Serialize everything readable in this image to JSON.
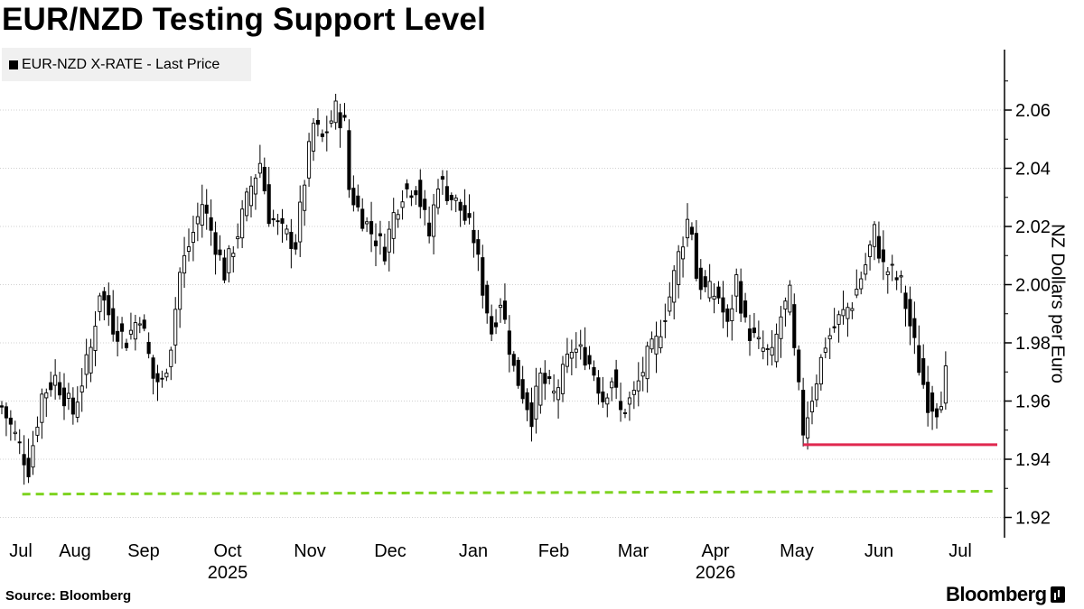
{
  "title": "EUR/NZD Testing Support Level",
  "legend": {
    "label": "EUR-NZD X-RATE - Last Price"
  },
  "source": "Source: Bloomberg",
  "brand": "Bloomberg",
  "chart_data": {
    "type": "candlestick",
    "ylabel": "NZ Dollars per Euro",
    "ylim": [
      1.915,
      2.08
    ],
    "yticks": [
      1.92,
      1.94,
      1.96,
      1.98,
      2.0,
      2.02,
      2.04,
      2.06
    ],
    "x_months": [
      "Jul",
      "Aug",
      "Sep",
      "Oct",
      "Nov",
      "Dec",
      "Jan",
      "Feb",
      "Mar",
      "Apr",
      "May",
      "Jun",
      "Jul"
    ],
    "x_years": [
      {
        "label": "2025",
        "under": "Oct"
      },
      {
        "label": "2026",
        "under": "Apr"
      }
    ],
    "grid": "horizontal dotted",
    "colors": {
      "candle": "#000000",
      "support_line": "#e0284f",
      "long_term_line": "#7ed321",
      "grid": "#d0d0d0"
    },
    "close_path": [
      [
        0,
        1.958
      ],
      [
        3,
        1.948
      ],
      [
        6,
        1.937
      ],
      [
        9,
        1.962
      ],
      [
        12,
        1.968
      ],
      [
        16,
        1.956
      ],
      [
        20,
        1.978
      ],
      [
        22,
        1.998
      ],
      [
        25,
        1.986
      ],
      [
        28,
        1.981
      ],
      [
        31,
        1.99
      ],
      [
        34,
        1.968
      ],
      [
        36,
        1.966
      ],
      [
        38,
        1.98
      ],
      [
        40,
        2.004
      ],
      [
        43,
        2.018
      ],
      [
        45,
        2.028
      ],
      [
        48,
        2.014
      ],
      [
        50,
        2.004
      ],
      [
        53,
        2.018
      ],
      [
        56,
        2.034
      ],
      [
        58,
        2.042
      ],
      [
        60,
        2.024
      ],
      [
        63,
        2.018
      ],
      [
        66,
        2.014
      ],
      [
        68,
        2.036
      ],
      [
        70,
        2.055
      ],
      [
        72,
        2.05
      ],
      [
        75,
        2.06
      ],
      [
        77,
        2.055
      ],
      [
        78,
        2.033
      ],
      [
        80,
        2.026
      ],
      [
        83,
        2.018
      ],
      [
        86,
        2.012
      ],
      [
        88,
        2.024
      ],
      [
        90,
        2.032
      ],
      [
        93,
        2.034
      ],
      [
        96,
        2.017
      ],
      [
        98,
        2.036
      ],
      [
        100,
        2.032
      ],
      [
        103,
        2.026
      ],
      [
        106,
        2.016
      ],
      [
        108,
        1.999
      ],
      [
        110,
        1.984
      ],
      [
        112,
        1.995
      ],
      [
        115,
        1.971
      ],
      [
        117,
        1.963
      ],
      [
        119,
        1.955
      ],
      [
        121,
        1.968
      ],
      [
        124,
        1.962
      ],
      [
        126,
        1.969
      ],
      [
        128,
        1.978
      ],
      [
        131,
        1.976
      ],
      [
        133,
        1.97
      ],
      [
        135,
        1.961
      ],
      [
        137,
        1.968
      ],
      [
        139,
        1.956
      ],
      [
        142,
        1.962
      ],
      [
        145,
        1.975
      ],
      [
        147,
        1.98
      ],
      [
        150,
        1.996
      ],
      [
        152,
        2.01
      ],
      [
        154,
        2.022
      ],
      [
        155,
        2.019
      ],
      [
        156,
        2.003
      ],
      [
        158,
        1.998
      ],
      [
        161,
        1.996
      ],
      [
        163,
        1.985
      ],
      [
        165,
        2.002
      ],
      [
        167,
        1.986
      ],
      [
        170,
        1.979
      ],
      [
        173,
        1.975
      ],
      [
        175,
        1.989
      ],
      [
        177,
        1.996
      ],
      [
        178,
        1.976
      ],
      [
        180,
        1.95
      ],
      [
        182,
        1.962
      ],
      [
        185,
        1.98
      ],
      [
        188,
        1.988
      ],
      [
        191,
        1.994
      ],
      [
        194,
        2.007
      ],
      [
        196,
        2.018
      ],
      [
        198,
        2.006
      ],
      [
        200,
        2.004
      ],
      [
        202,
        2.0
      ],
      [
        204,
        1.986
      ],
      [
        206,
        1.972
      ],
      [
        208,
        1.96
      ],
      [
        210,
        1.958
      ],
      [
        211,
        1.962
      ],
      [
        212,
        1.969
      ]
    ],
    "annotations": [
      {
        "type": "hline",
        "label": "support",
        "y": 1.945,
        "x_start": 180,
        "x_end": 224
      },
      {
        "type": "hline",
        "label": "long-term support",
        "y_start": 1.928,
        "y_end": 1.929,
        "x_start": 5,
        "x_end": 224,
        "style": "dashed"
      }
    ]
  }
}
